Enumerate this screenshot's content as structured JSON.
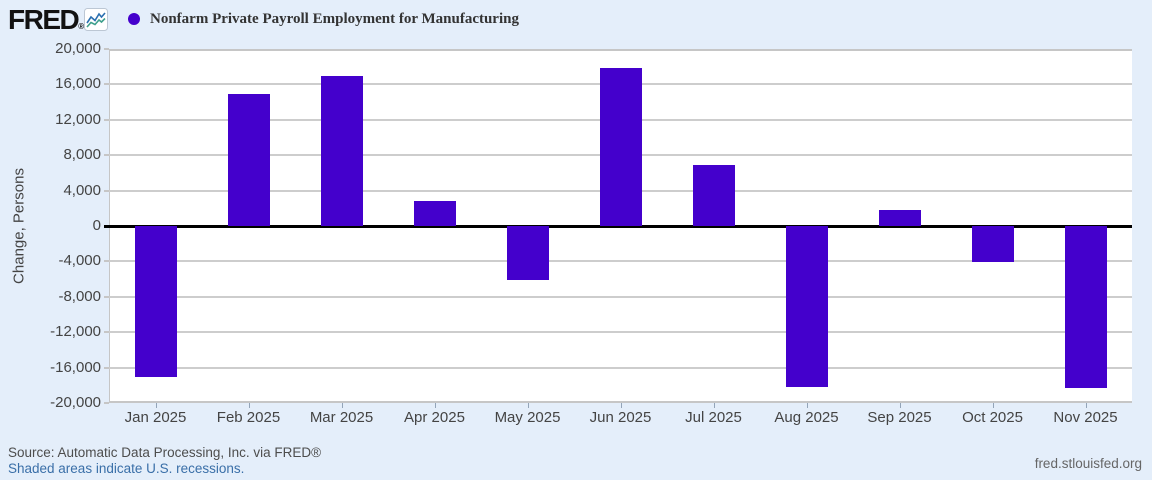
{
  "header": {
    "logo": "FRED",
    "logo_mark": "®",
    "series_legend": "Nonfarm Private Payroll Employment for Manufacturing"
  },
  "chart_data": {
    "type": "bar",
    "title": "Nonfarm Private Payroll Employment for Manufacturing",
    "ylabel": "Change, Persons",
    "categories": [
      "Jan 2025",
      "Feb 2025",
      "Mar 2025",
      "Apr 2025",
      "May 2025",
      "Jun 2025",
      "Jul 2025",
      "Aug 2025",
      "Sep 2025",
      "Oct 2025",
      "Nov 2025"
    ],
    "values": [
      -17100,
      14900,
      16900,
      2800,
      -6100,
      17800,
      6900,
      -18200,
      1800,
      -4100,
      -18300
    ],
    "ylim": [
      -20000,
      20000
    ],
    "ytick_step": 4000,
    "grid": true,
    "zero_line": true,
    "legend_position": "top-left",
    "bar_color": "#4400cc"
  },
  "footer": {
    "source": "Source: Automatic Data Processing, Inc. via FRED®",
    "recessions_link": "Shaded areas indicate U.S. recessions.",
    "site": "fred.stlouisfed.org"
  },
  "colors": {
    "page_bg": "#e4eefa",
    "plot_bg": "#ffffff",
    "bar": "#4400cc",
    "gridline": "#cdcdcd",
    "zero_line": "#000000",
    "axis_text": "#444444",
    "title_text": "#333333",
    "source_text": "#4d4d4d",
    "link_blue": "#3a6fa8",
    "site_text": "#666666",
    "logo_icon_blue": "#2a6fb0",
    "logo_icon_teal": "#3fa08c"
  }
}
